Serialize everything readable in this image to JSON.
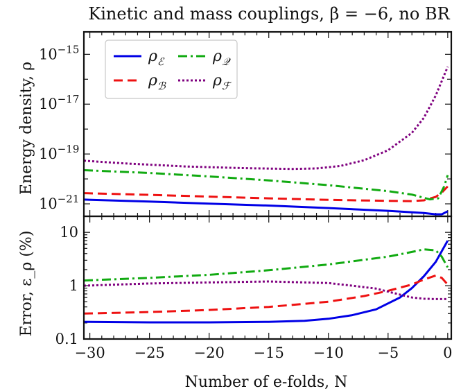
{
  "title": "Kinetic and mass couplings, β = −6, no BR",
  "chart_data": [
    {
      "type": "line",
      "panel": "top",
      "ylabel": "Energy density, ρ",
      "yscale": "log",
      "xlim": [
        -30.5,
        0.3
      ],
      "ylim": [
        -21.5,
        -14.1
      ],
      "yticks": [
        {
          "exp": -21,
          "base": "10",
          "sup": "−21"
        },
        {
          "exp": -19,
          "base": "10",
          "sup": "−19"
        },
        {
          "exp": -17,
          "base": "10",
          "sup": "−17"
        },
        {
          "exp": -15,
          "base": "10",
          "sup": "−15"
        }
      ],
      "legend_position": "upper-left",
      "series": [
        {
          "name": "ρ_E",
          "main": "ρ",
          "sub": "ℰ",
          "color": "#0000e6",
          "dash": "",
          "x": [
            -30.5,
            -25,
            -20,
            -15,
            -10,
            -5,
            -2,
            -1,
            -0.5,
            0
          ],
          "log10": [
            -20.83,
            -20.91,
            -20.99,
            -21.07,
            -21.17,
            -21.28,
            -21.37,
            -21.42,
            -21.42,
            -21.3
          ]
        },
        {
          "name": "ρ_B",
          "main": "ρ",
          "sub": "ℬ",
          "color": "#ee1111",
          "dash": "13 7",
          "x": [
            -30.5,
            -25,
            -20,
            -15,
            -10,
            -5,
            -3,
            -2,
            -1,
            -0.5,
            0
          ],
          "log10": [
            -20.57,
            -20.64,
            -20.71,
            -20.78,
            -20.84,
            -20.88,
            -20.89,
            -20.86,
            -20.72,
            -20.55,
            -20.3
          ]
        },
        {
          "name": "ρ_Q",
          "main": "ρ",
          "sub": "𝒬",
          "color": "#11aa11",
          "dash": "13 5 3 5",
          "x": [
            -30.5,
            -25,
            -20,
            -15,
            -10,
            -5,
            -3,
            -1.5,
            -0.8,
            -0.3,
            0
          ],
          "log10": [
            -19.65,
            -19.76,
            -19.9,
            -20.06,
            -20.25,
            -20.49,
            -20.63,
            -20.82,
            -20.78,
            -20.3,
            -19.85
          ]
        },
        {
          "name": "ρ_F",
          "main": "ρ",
          "sub": "ℱ",
          "color": "#7f007f",
          "dash": "3 3",
          "x": [
            -30.5,
            -27,
            -22,
            -17,
            -13,
            -11,
            -9,
            -7,
            -5,
            -3,
            -2,
            -1,
            0
          ],
          "log10": [
            -19.27,
            -19.38,
            -19.5,
            -19.57,
            -19.6,
            -19.58,
            -19.48,
            -19.25,
            -18.85,
            -18.15,
            -17.55,
            -16.65,
            -15.5
          ]
        }
      ]
    },
    {
      "type": "line",
      "panel": "bottom",
      "ylabel": "Error, ε_ρ (%)",
      "yscale": "log",
      "xlabel": "Number of e-folds, N",
      "xlim": [
        -30.5,
        0.3
      ],
      "ylim": [
        0.1,
        20
      ],
      "xticks": [
        {
          "v": -30,
          "label": "−30"
        },
        {
          "v": -25,
          "label": "−25"
        },
        {
          "v": -20,
          "label": "−20"
        },
        {
          "v": -15,
          "label": "−15"
        },
        {
          "v": -10,
          "label": "−10"
        },
        {
          "v": -5,
          "label": "−5"
        },
        {
          "v": 0,
          "label": "0"
        }
      ],
      "yticks": [
        {
          "v": 0.1,
          "label": "0.1"
        },
        {
          "v": 1,
          "label": "1"
        },
        {
          "v": 10,
          "label": "10"
        }
      ],
      "series": [
        {
          "name": "ρ_E",
          "color": "#0000e6",
          "dash": "",
          "x": [
            -30.5,
            -25,
            -20,
            -15,
            -12,
            -10,
            -8,
            -6,
            -4,
            -3,
            -2,
            -1,
            0
          ],
          "y": [
            0.21,
            0.205,
            0.205,
            0.21,
            0.22,
            0.24,
            0.28,
            0.36,
            0.6,
            0.9,
            1.5,
            2.8,
            7
          ]
        },
        {
          "name": "ρ_B",
          "color": "#ee1111",
          "dash": "13 7",
          "x": [
            -30.5,
            -25,
            -20,
            -15,
            -10,
            -7,
            -5,
            -3,
            -2,
            -1,
            -0.5,
            0
          ],
          "y": [
            0.3,
            0.32,
            0.35,
            0.4,
            0.5,
            0.64,
            0.8,
            1.05,
            1.3,
            1.55,
            1.4,
            1.05
          ]
        },
        {
          "name": "ρ_Q",
          "color": "#11aa11",
          "dash": "13 5 3 5",
          "x": [
            -30.5,
            -25,
            -20,
            -15,
            -10,
            -5,
            -3,
            -2,
            -1,
            -0.5,
            0
          ],
          "y": [
            1.25,
            1.4,
            1.6,
            1.95,
            2.5,
            3.5,
            4.3,
            4.8,
            4.6,
            3.5,
            2.2
          ]
        },
        {
          "name": "ρ_F",
          "color": "#7f007f",
          "dash": "3 3",
          "x": [
            -30.5,
            -25,
            -20,
            -15,
            -10,
            -8,
            -6,
            -4,
            -3,
            -2,
            -1,
            0
          ],
          "y": [
            1.0,
            1.1,
            1.15,
            1.2,
            1.12,
            1.0,
            0.88,
            0.68,
            0.6,
            0.57,
            0.56,
            0.56
          ]
        }
      ]
    }
  ]
}
